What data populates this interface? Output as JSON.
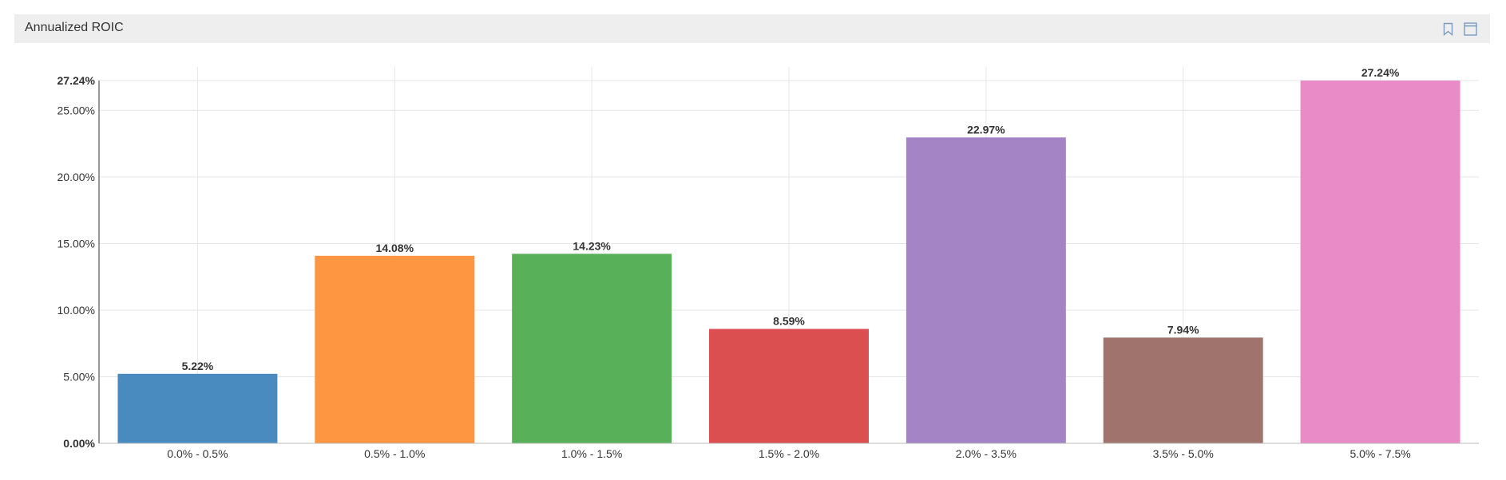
{
  "panel": {
    "title": "Annualized ROIC"
  },
  "header_icons": [
    "bookmark-icon",
    "maximize-icon"
  ],
  "colors": {
    "header_bg": "#eeeeee",
    "grid": "#e6e6e6",
    "axis": "#333333",
    "label": "#333333"
  },
  "chart_data": {
    "type": "bar",
    "title": "Annualized ROIC",
    "xlabel": "",
    "ylabel": "",
    "categories": [
      "0.0% - 0.5%",
      "0.5% - 1.0%",
      "1.0% - 1.5%",
      "1.5% - 2.0%",
      "2.0% - 3.5%",
      "3.5% - 5.0%",
      "5.0% - 7.5%"
    ],
    "values": [
      5.22,
      14.08,
      14.23,
      8.59,
      22.97,
      7.94,
      27.24
    ],
    "data_labels": [
      "5.22%",
      "14.08%",
      "14.23%",
      "8.59%",
      "22.97%",
      "7.94%",
      "27.24%"
    ],
    "bar_colors": [
      "#4a8bbf",
      "#fe9540",
      "#58b058",
      "#db4f51",
      "#a584c6",
      "#a0746c",
      "#e88bc7"
    ],
    "ylim": [
      0,
      27.24
    ],
    "yticks": [
      0,
      5,
      10,
      15,
      20,
      25,
      27.24
    ],
    "ytick_labels": [
      "0.00%",
      "5.00%",
      "10.00%",
      "15.00%",
      "20.00%",
      "25.00%",
      "27.24%"
    ],
    "grid": true,
    "legend": "none"
  }
}
